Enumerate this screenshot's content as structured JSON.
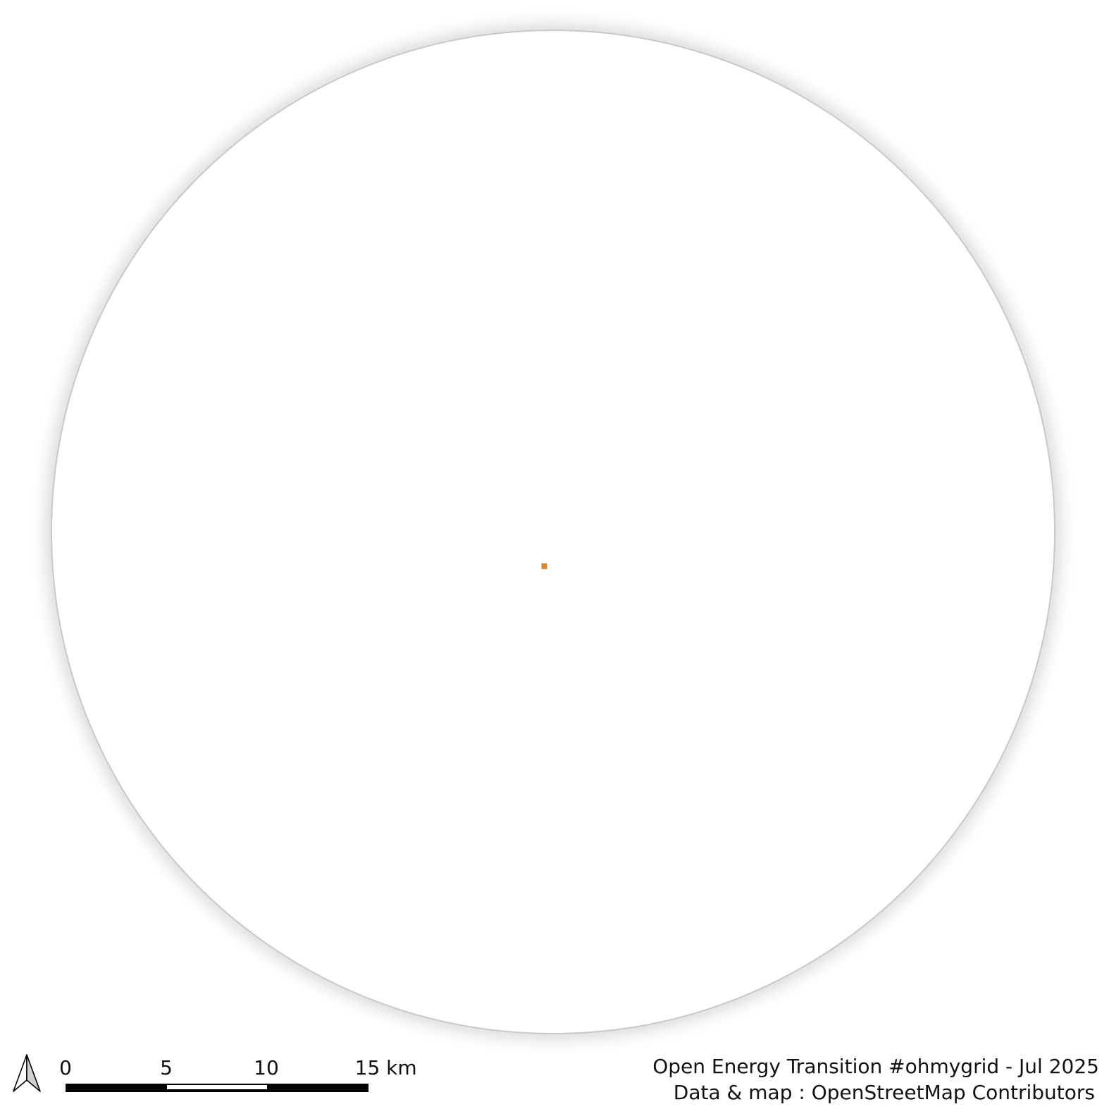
{
  "map": {
    "scale_bar": {
      "labels": [
        "0",
        "5",
        "10",
        "15 km"
      ]
    },
    "credits": {
      "line1": "Open Energy Transition #ohmygrid - Jul 2025",
      "line2": "Data & map : OpenStreetMap Contributors"
    },
    "icons": {
      "north_arrow": "north-arrow-icon"
    },
    "colors": {
      "background": "#ffffff",
      "globe_fill": "#ffffff",
      "globe_halo": "#c8c8c8",
      "feature": "#e08a2c",
      "feature_outline": "#b86a1a",
      "scale_dark": "#000000",
      "scale_light": "#ffffff"
    }
  }
}
